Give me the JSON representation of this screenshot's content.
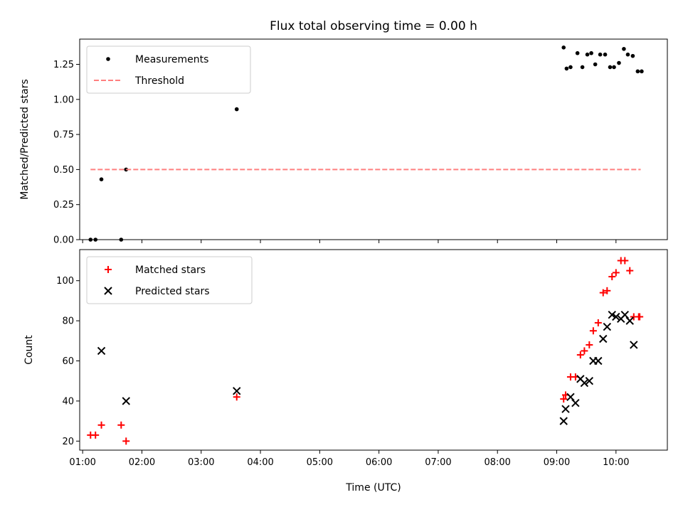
{
  "chart_data": [
    {
      "type": "scatter",
      "title": "Flux total observing time = 0.00 h",
      "xlabel": "",
      "ylabel": "Matched/Predicted stars",
      "ylim": [
        0,
        1.43
      ],
      "yticks": [
        "0.00",
        "0.25",
        "0.50",
        "0.75",
        "1.00",
        "1.25"
      ],
      "legend_position": "upper left",
      "series": [
        {
          "name": "Measurements",
          "marker": "dot",
          "color": "#000000",
          "x": [
            "01:08",
            "01:13",
            "01:39",
            "01:19",
            "01:44",
            "03:36",
            "09:07",
            "09:10",
            "09:14",
            "09:21",
            "09:26",
            "09:31",
            "09:35",
            "09:39",
            "09:44",
            "09:49",
            "09:54",
            "09:58",
            "10:03",
            "10:08",
            "10:12",
            "10:17",
            "10:22",
            "10:26"
          ],
          "y": [
            0.0,
            0.0,
            0.0,
            0.43,
            0.5,
            0.93,
            1.37,
            1.22,
            1.23,
            1.33,
            1.23,
            1.32,
            1.33,
            1.25,
            1.32,
            1.32,
            1.23,
            1.23,
            1.26,
            1.36,
            1.32,
            1.31,
            1.2,
            1.2
          ]
        },
        {
          "name": "Threshold",
          "line": "dashed",
          "color": "#ff7f7f",
          "x": [
            "01:08",
            "10:25"
          ],
          "y": [
            0.5,
            0.5
          ]
        }
      ]
    },
    {
      "type": "scatter",
      "title": "",
      "xlabel": "Time (UTC)",
      "ylabel": "Count",
      "ylim": [
        15.5,
        115.5
      ],
      "yticks": [
        "20",
        "40",
        "60",
        "80",
        "100"
      ],
      "xticks": [
        "01:00",
        "02:00",
        "03:00",
        "04:00",
        "05:00",
        "06:00",
        "07:00",
        "08:00",
        "09:00",
        "10:00"
      ],
      "xlim": [
        "00:57",
        "10:52"
      ],
      "legend_position": "upper left",
      "series": [
        {
          "name": "Matched stars",
          "marker": "plus",
          "color": "#ff0000",
          "x": [
            "01:08",
            "01:13",
            "01:19",
            "01:39",
            "01:44",
            "03:36",
            "09:07",
            "09:09",
            "09:14",
            "09:19",
            "09:24",
            "09:28",
            "09:33",
            "09:37",
            "09:42",
            "09:47",
            "09:51",
            "09:56",
            "10:00",
            "10:05",
            "10:09",
            "10:14",
            "10:18",
            "10:23",
            "10:24"
          ],
          "y": [
            23,
            23,
            28,
            28,
            20,
            42,
            41,
            43,
            52,
            52,
            63,
            65,
            68,
            75,
            79,
            94,
            95,
            102,
            104,
            110,
            110,
            105,
            82,
            82,
            82
          ]
        },
        {
          "name": "Predicted stars",
          "marker": "x",
          "color": "#000000",
          "x": [
            "01:19",
            "01:44",
            "03:36",
            "09:07",
            "09:09",
            "09:14",
            "09:19",
            "09:24",
            "09:28",
            "09:33",
            "09:37",
            "09:42",
            "09:47",
            "09:51",
            "09:56",
            "10:00",
            "10:05",
            "10:09",
            "10:14",
            "10:18"
          ],
          "y": [
            65,
            40,
            45,
            30,
            36,
            42,
            39,
            51,
            49,
            50,
            60,
            60,
            71,
            77,
            83,
            82,
            81,
            83,
            80,
            68
          ]
        }
      ]
    }
  ]
}
